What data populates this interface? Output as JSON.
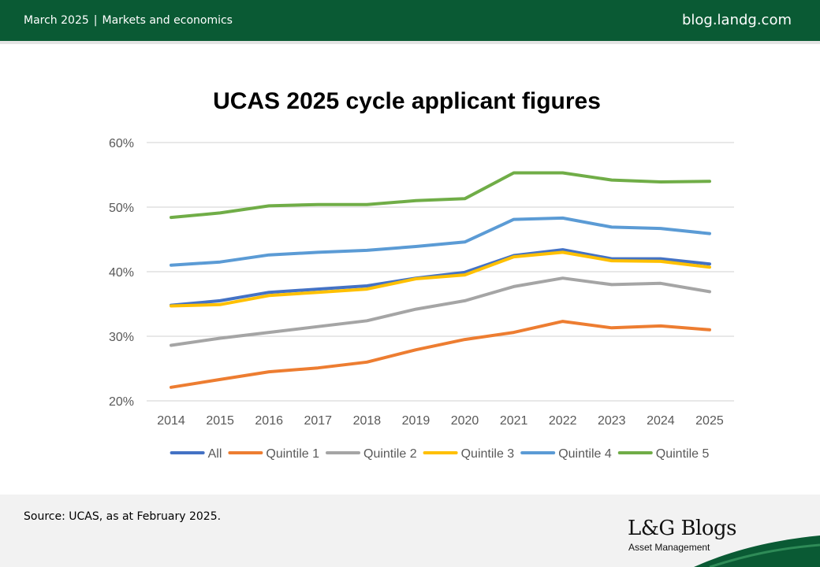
{
  "header": {
    "date": "March 2025",
    "separator": "|",
    "category": "Markets and economics",
    "site": "blog.landg.com"
  },
  "footer": {
    "source": "Source: UCAS, as at February 2025.",
    "brand_name": "L&G Blogs",
    "brand_sub": "Asset Management"
  },
  "colors": {
    "header_bg": "#0a5a34",
    "swoosh": "#0a5a34"
  },
  "chart_data": {
    "type": "line",
    "title": "UCAS 2025 cycle applicant figures",
    "x": [
      "2014",
      "2015",
      "2016",
      "2017",
      "2018",
      "2019",
      "2020",
      "2021",
      "2022",
      "2023",
      "2024",
      "2025"
    ],
    "ylim": [
      20,
      60
    ],
    "yticks": [
      "20%",
      "30%",
      "40%",
      "50%",
      "60%"
    ],
    "ytick_values": [
      20,
      30,
      40,
      50,
      60
    ],
    "grid": true,
    "legend_position": "bottom",
    "series": [
      {
        "name": "All",
        "color": "#4472c4",
        "values": [
          34.8,
          35.5,
          36.8,
          37.3,
          37.8,
          39.0,
          39.9,
          42.5,
          43.4,
          42.0,
          42.0,
          41.2
        ]
      },
      {
        "name": "Quintile 1",
        "color": "#ed7d31",
        "values": [
          22.1,
          23.3,
          24.5,
          25.1,
          26.0,
          27.9,
          29.5,
          30.6,
          32.3,
          31.3,
          31.6,
          31.0
        ]
      },
      {
        "name": "Quintile 2",
        "color": "#a5a5a5",
        "values": [
          28.6,
          29.7,
          30.6,
          31.5,
          32.4,
          34.2,
          35.5,
          37.7,
          39.0,
          38.0,
          38.2,
          36.9
        ]
      },
      {
        "name": "Quintile 3",
        "color": "#ffc000",
        "values": [
          34.7,
          34.9,
          36.3,
          36.8,
          37.3,
          38.9,
          39.5,
          42.3,
          43.0,
          41.7,
          41.6,
          40.7
        ]
      },
      {
        "name": "Quintile 4",
        "color": "#5b9bd5",
        "values": [
          41.0,
          41.5,
          42.6,
          43.0,
          43.3,
          43.9,
          44.6,
          48.1,
          48.3,
          46.9,
          46.7,
          45.9
        ]
      },
      {
        "name": "Quintile 5",
        "color": "#70ad47",
        "values": [
          48.4,
          49.1,
          50.2,
          50.4,
          50.4,
          51.0,
          51.3,
          55.3,
          55.3,
          54.2,
          53.9,
          54.0
        ]
      }
    ]
  }
}
